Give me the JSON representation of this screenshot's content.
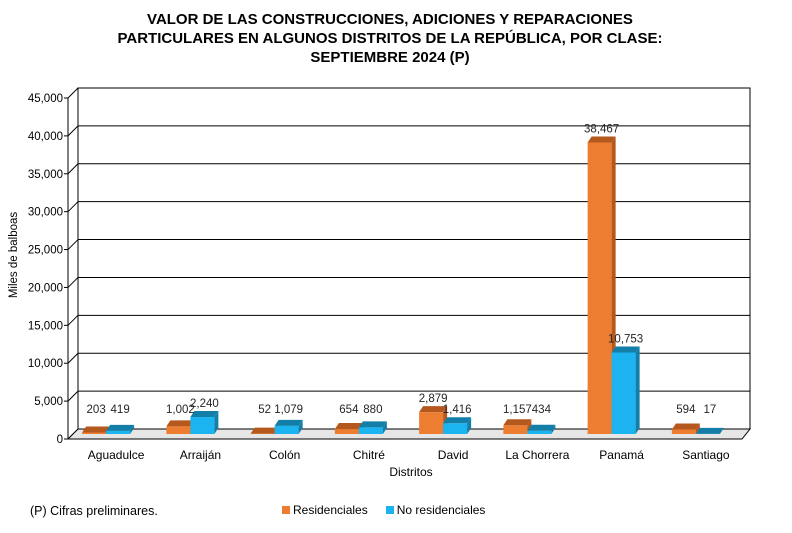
{
  "title_lines": [
    "VALOR DE LAS CONSTRUCCIONES, ADICIONES Y REPARACIONES",
    "PARTICULARES EN ALGUNOS DISTRITOS DE LA REPÚBLICA, POR CLASE:",
    "SEPTIEMBRE 2024 (P)"
  ],
  "footnote": "(P) Cifras preliminares.",
  "colors": {
    "residenciales": "#ED7D31",
    "residenciales_top": "#B5581E",
    "no_residenciales": "#1CB4F0",
    "no_residenciales_top": "#137FA8"
  },
  "chart_data": {
    "type": "bar",
    "title": "VALOR DE LAS CONSTRUCCIONES, ADICIONES Y REPARACIONES PARTICULARES EN ALGUNOS DISTRITOS DE LA REPÚBLICA, POR CLASE: SEPTIEMBRE 2024 (P)",
    "xlabel": "Distritos",
    "ylabel": "Miles de balboas",
    "ylim": [
      0,
      45000
    ],
    "yticks": [
      0,
      5000,
      10000,
      15000,
      20000,
      25000,
      30000,
      35000,
      40000,
      45000
    ],
    "ytick_labels": [
      "0",
      "5,000",
      "10,000",
      "15,000",
      "20,000",
      "25,000",
      "30,000",
      "35,000",
      "40,000",
      "45,000"
    ],
    "grid": true,
    "legend_position": "bottom",
    "categories": [
      "Aguadulce",
      "Arraiján",
      "Colón",
      "Chitré",
      "David",
      "La Chorrera",
      "Panamá",
      "Santiago"
    ],
    "series": [
      {
        "name": "Residenciales",
        "values": [
          203,
          1002,
          52,
          654,
          2879,
          1157,
          38467,
          594
        ],
        "labels": [
          "203",
          "1,002",
          "52",
          "654",
          "2,879",
          "1,157",
          "38,467",
          "594"
        ]
      },
      {
        "name": "No residenciales",
        "values": [
          419,
          2240,
          1079,
          880,
          1416,
          434,
          10753,
          17
        ],
        "labels": [
          "419",
          "2,240",
          "1,079",
          "880",
          "1,416",
          "434",
          "10,753",
          "17"
        ]
      }
    ]
  }
}
